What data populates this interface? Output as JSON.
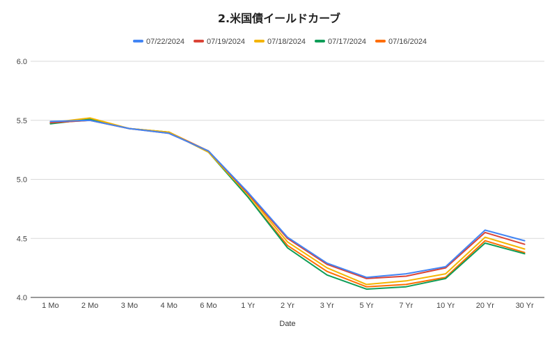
{
  "chart_data": {
    "type": "line",
    "title": "2.米国債イールドカーブ",
    "xlabel": "Date",
    "ylabel": "",
    "ylim": [
      4.0,
      6.0
    ],
    "yticks": [
      "4.0",
      "4.5",
      "5.0",
      "5.5",
      "6.0"
    ],
    "grid": true,
    "legend_position": "top",
    "categories": [
      "1 Mo",
      "2 Mo",
      "3 Mo",
      "4 Mo",
      "6 Mo",
      "1 Yr",
      "2 Yr",
      "3 Yr",
      "5 Yr",
      "7 Yr",
      "10 Yr",
      "20 Yr",
      "30 Yr"
    ],
    "series": [
      {
        "name": "07/22/2024",
        "color": "#4285f4",
        "values": [
          5.49,
          5.5,
          5.43,
          5.39,
          5.24,
          4.89,
          4.51,
          4.29,
          4.17,
          4.2,
          4.26,
          4.57,
          4.48
        ]
      },
      {
        "name": "07/19/2024",
        "color": "#db4437",
        "values": [
          5.48,
          5.5,
          5.43,
          5.39,
          5.24,
          4.88,
          4.5,
          4.28,
          4.16,
          4.18,
          4.25,
          4.55,
          4.45
        ]
      },
      {
        "name": "07/18/2024",
        "color": "#f4b400",
        "values": [
          5.48,
          5.52,
          5.43,
          5.4,
          5.23,
          4.87,
          4.47,
          4.25,
          4.11,
          4.14,
          4.2,
          4.51,
          4.41
        ]
      },
      {
        "name": "07/17/2024",
        "color": "#0f9d58",
        "values": [
          5.47,
          5.51,
          5.43,
          5.4,
          5.23,
          4.85,
          4.42,
          4.19,
          4.07,
          4.09,
          4.16,
          4.46,
          4.37
        ]
      },
      {
        "name": "07/16/2024",
        "color": "#ff6d01",
        "values": [
          5.48,
          5.5,
          5.43,
          5.4,
          5.24,
          4.85,
          4.44,
          4.22,
          4.09,
          4.11,
          4.17,
          4.48,
          4.38
        ]
      }
    ]
  }
}
